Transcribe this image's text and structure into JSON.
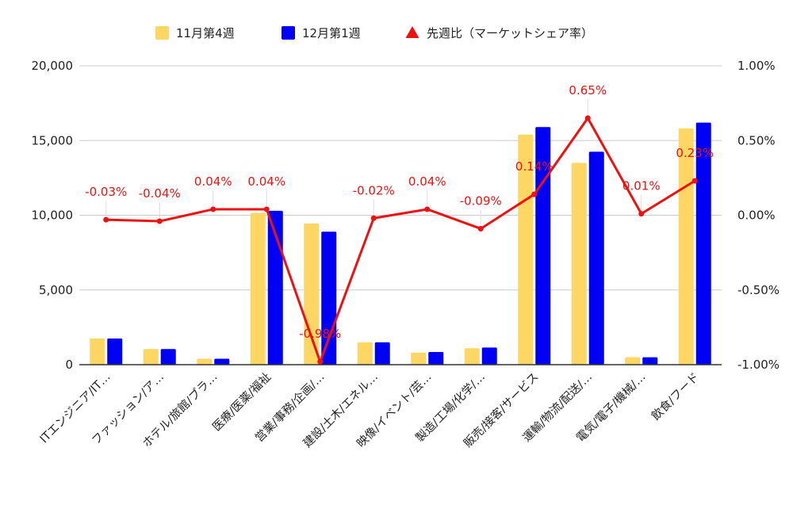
{
  "chart_data": {
    "type": "bar",
    "categories": [
      "ITエンジニア/IT…",
      "ファッション/ア…",
      "ホテル/旅館/ブラ…",
      "医療/医薬/福祉",
      "営業/事務/企画/…",
      "建設/土木/エネル…",
      "映像/イベント/芸…",
      "製造/工場/化学/…",
      "販売/接客/サービス",
      "運輸/物流/配送/…",
      "電気/電子/機械/…",
      "飲食/フード"
    ],
    "series": [
      {
        "name": "11月第4週",
        "type": "bar",
        "axis": "left",
        "color": "#fdd663",
        "values": [
          1750,
          1050,
          400,
          10150,
          9450,
          1500,
          800,
          1100,
          15400,
          13500,
          500,
          15800
        ]
      },
      {
        "name": "12月第1週",
        "type": "bar",
        "axis": "left",
        "color": "#0000f5",
        "values": [
          1750,
          1050,
          400,
          10300,
          8900,
          1500,
          850,
          1150,
          15900,
          14250,
          500,
          16200
        ]
      },
      {
        "name": "先週比（マーケットシェア率）",
        "type": "line",
        "axis": "right",
        "color": "#ee1111",
        "values": [
          -0.03,
          -0.04,
          0.04,
          0.04,
          -0.98,
          -0.02,
          0.04,
          -0.09,
          0.14,
          0.65,
          0.01,
          0.23
        ],
        "labels": [
          "-0.03%",
          "-0.04%",
          "0.04%",
          "0.04%",
          "-0.98%",
          "-0.02%",
          "0.04%",
          "-0.09%",
          "0.14%",
          "0.65%",
          "0.01%",
          "0.23%"
        ]
      }
    ],
    "y_left": {
      "range": [
        0,
        20000
      ],
      "ticks": [
        0,
        5000,
        10000,
        15000,
        20000
      ],
      "tick_labels": [
        "0",
        "5,000",
        "10,000",
        "15,000",
        "20,000"
      ]
    },
    "y_right": {
      "range": [
        -1.0,
        1.0
      ],
      "ticks": [
        -1.0,
        -0.5,
        0.0,
        0.5,
        1.0
      ],
      "tick_labels": [
        "-1.00%",
        "-0.50%",
        "0.00%",
        "0.50%",
        "1.00%"
      ]
    },
    "grid": true,
    "legend_position": "top"
  }
}
